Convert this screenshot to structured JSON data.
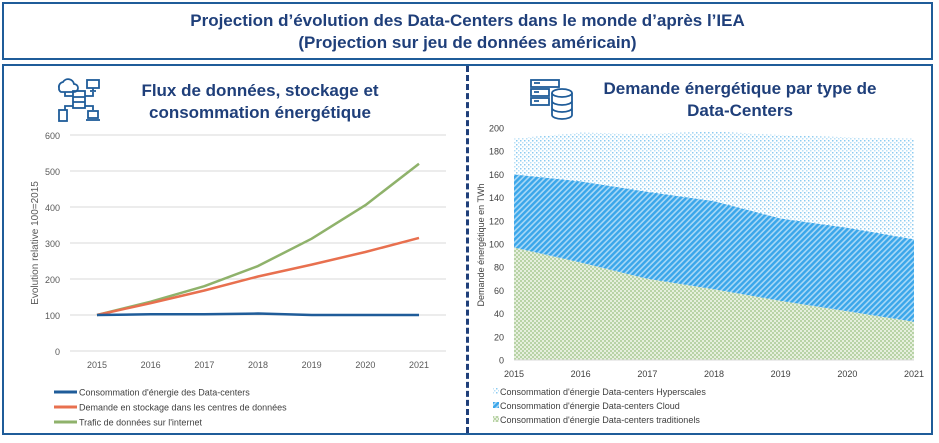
{
  "header": {
    "title_line1": "Projection d’évolution des Data-Centers dans le monde d’après l’IEA",
    "title_line2": "(Projection sur jeu de données américain)"
  },
  "colors": {
    "frame": "#1f5c99",
    "title": "#1f3f7a",
    "energy": "#1f5c99",
    "storage": "#e8704f",
    "traffic": "#8fb26b",
    "hyperscale": "#9fd3f2",
    "cloud": "#3aa6ea",
    "traditional": "#b8d3a6"
  },
  "icons": {
    "left": "network-datacenter-icon",
    "right": "server-database-icon"
  },
  "chart_data": [
    {
      "type": "line",
      "title_line1": "Flux de données, stockage et",
      "title_line2": "consommation énergétique",
      "ylabel": "Evolution relative 100=2015",
      "xlabel": "",
      "ylim": [
        0,
        600
      ],
      "yticks": [
        0,
        100,
        200,
        300,
        400,
        500,
        600
      ],
      "grid": true,
      "legend": "bottom",
      "categories": [
        "2015",
        "2016",
        "2017",
        "2018",
        "2019",
        "2020",
        "2021"
      ],
      "series": [
        {
          "name": "Consommation d'énergie des Data-centers",
          "values": [
            100,
            102,
            102,
            104,
            100,
            100,
            100
          ]
        },
        {
          "name": "Demande en stockage dans les centres de données",
          "values": [
            100,
            133,
            168,
            207,
            240,
            275,
            314
          ]
        },
        {
          "name": "Trafic de données sur l'internet",
          "values": [
            100,
            137,
            180,
            236,
            312,
            405,
            520
          ]
        }
      ]
    },
    {
      "type": "area",
      "stacked": true,
      "title_line1": "Demande énergétique par type de",
      "title_line2": "Data-Centers",
      "ylabel": "Demande énergétique en TWh",
      "xlabel": "",
      "ylim": [
        0,
        200
      ],
      "yticks": [
        0,
        20,
        40,
        60,
        80,
        100,
        120,
        140,
        160,
        180,
        200
      ],
      "grid": false,
      "legend": "bottom",
      "categories": [
        "2015",
        "2016",
        "2017",
        "2018",
        "2019",
        "2020",
        "2021"
      ],
      "series": [
        {
          "name": "Consommation d'énergie Data-centers traditionels",
          "values": [
            97,
            84,
            70,
            61,
            51,
            42,
            33
          ]
        },
        {
          "name": "Consommation d'énergie Data-centers Cloud",
          "values": [
            63,
            70,
            75,
            76,
            71,
            72,
            71
          ]
        },
        {
          "name": "Consommation d'énergie Data-centers Hyperscales",
          "values": [
            31,
            42,
            50,
            60,
            72,
            78,
            87
          ]
        }
      ],
      "legend_order": [
        "Consommation d'énergie Data-centers Hyperscales",
        "Consommation d'énergie Data-centers Cloud",
        "Consommation d'énergie Data-centers traditionels"
      ]
    }
  ]
}
